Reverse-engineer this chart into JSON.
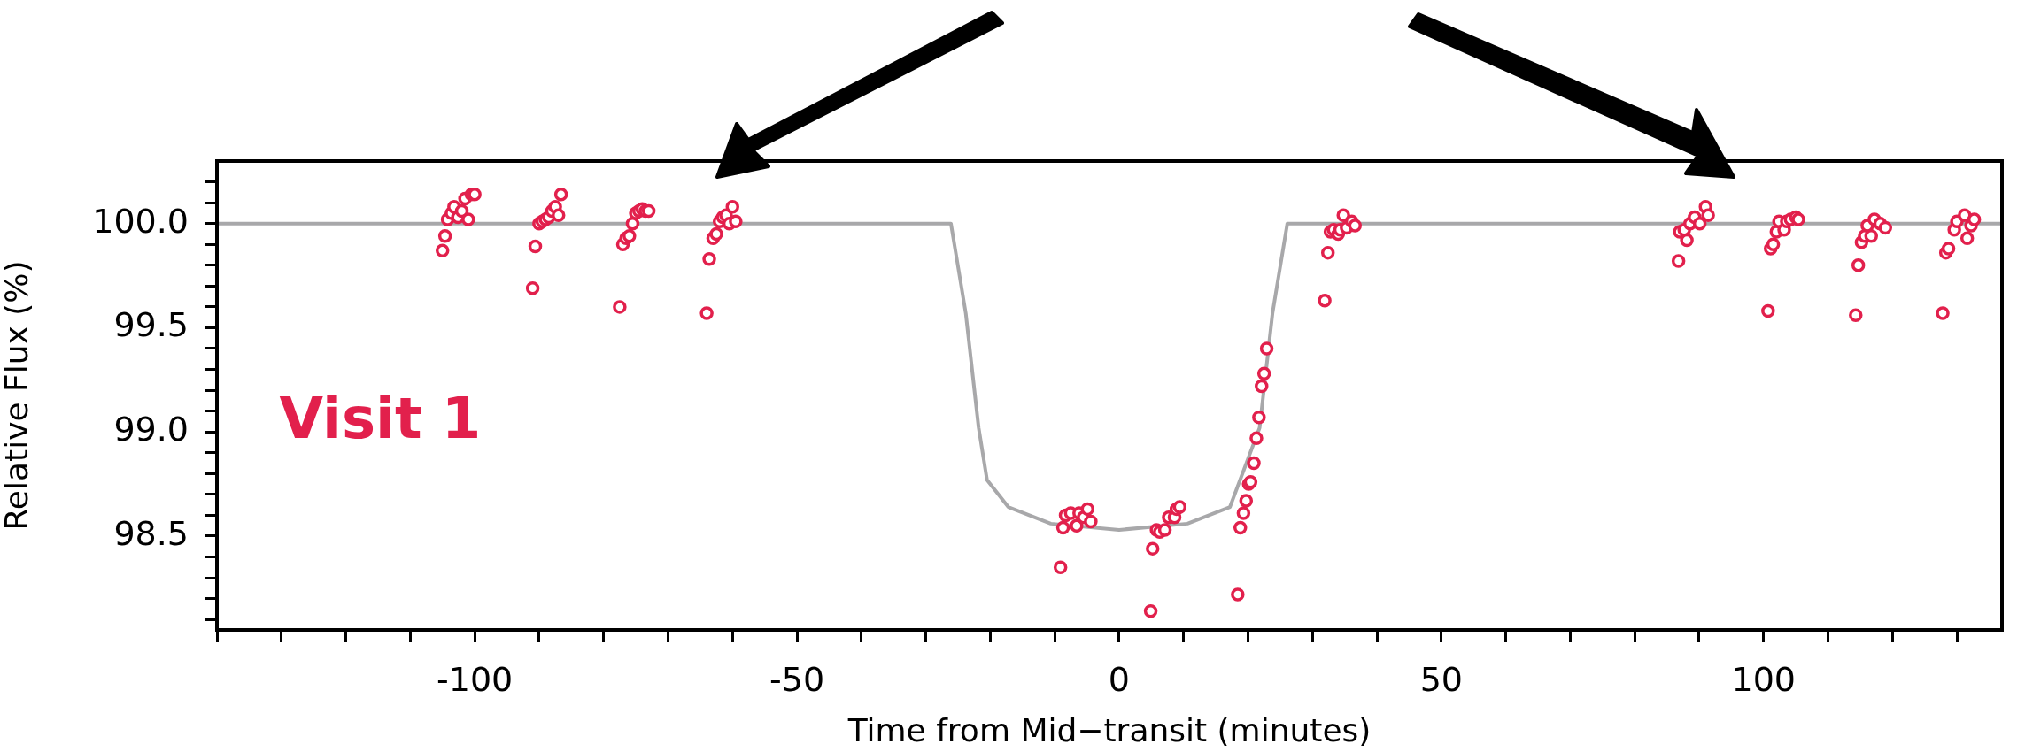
{
  "chart_data": {
    "type": "scatter",
    "xlabel": "Time from Mid−transit (minutes)",
    "ylabel": "Relative Flux (%)",
    "xlim": [
      -140,
      137
    ],
    "ylim": [
      98.05,
      100.3
    ],
    "xticks": [
      {
        "value": -140,
        "label": null
      },
      {
        "value": -130,
        "label": null
      },
      {
        "value": -120,
        "label": null
      },
      {
        "value": -110,
        "label": null
      },
      -100,
      {
        "value": -90,
        "label": null
      },
      {
        "value": -80,
        "label": null
      },
      {
        "value": -70,
        "label": null
      },
      {
        "value": -60,
        "label": null
      },
      -50,
      {
        "value": -40,
        "label": null
      },
      {
        "value": -30,
        "label": null
      },
      {
        "value": -20,
        "label": null
      },
      {
        "value": -10,
        "label": null
      },
      0,
      {
        "value": 10,
        "label": null
      },
      {
        "value": 20,
        "label": null
      },
      {
        "value": 30,
        "label": null
      },
      {
        "value": 40,
        "label": null
      },
      50,
      {
        "value": 60,
        "label": null
      },
      {
        "value": 70,
        "label": null
      },
      {
        "value": 80,
        "label": null
      },
      {
        "value": 90,
        "label": null
      },
      100,
      {
        "value": 110,
        "label": null
      },
      {
        "value": 120,
        "label": null
      },
      {
        "value": 130,
        "label": null
      }
    ],
    "yticks": [
      {
        "value": 98.1,
        "label": null
      },
      {
        "value": 98.2,
        "label": null
      },
      {
        "value": 98.3,
        "label": null
      },
      {
        "value": 98.4,
        "label": null
      },
      98.5,
      {
        "value": 98.6,
        "label": null
      },
      {
        "value": 98.7,
        "label": null
      },
      {
        "value": 98.8,
        "label": null
      },
      {
        "value": 98.9,
        "label": null
      },
      {
        "value": 99,
        "label": "99.0"
      },
      {
        "value": 99.1,
        "label": null
      },
      {
        "value": 99.2,
        "label": null
      },
      {
        "value": 99.3,
        "label": null
      },
      {
        "value": 99.4,
        "label": null
      },
      99.5,
      {
        "value": 99.6,
        "label": null
      },
      {
        "value": 99.7,
        "label": null
      },
      {
        "value": 99.8,
        "label": null
      },
      {
        "value": 99.9,
        "label": null
      },
      {
        "value": 100,
        "label": "100.0"
      },
      {
        "value": 100.1,
        "label": null
      },
      {
        "value": 100.2,
        "label": null
      }
    ],
    "grid": false,
    "legend": false,
    "series": [
      {
        "type": "line",
        "color": "#a8a8aa",
        "marker": "none",
        "line_style": "solid",
        "x": [
          -140,
          -26.1,
          -23.8,
          -21.8,
          -20.5,
          -17.2,
          -10.6,
          0,
          10.6,
          17.2,
          21.8,
          23.8,
          26.1,
          137
        ],
        "values": [
          100,
          100,
          99.57,
          99.02,
          98.77,
          98.64,
          98.56,
          98.53,
          98.56,
          98.64,
          99.02,
          99.57,
          100,
          100
        ]
      },
      {
        "type": "scatter",
        "name": "Visit 1",
        "color": "#e2204c",
        "marker": "circle",
        "x": [
          -105,
          -104.6,
          -104.2,
          -103.6,
          -103.2,
          -102.6,
          -102,
          -101.5,
          -101,
          -100.5,
          -100,
          -91,
          -90.6,
          -90,
          -89.5,
          -89,
          -88.5,
          -88,
          -87.5,
          -87,
          -86.6,
          -77.5,
          -77,
          -76.5,
          -76,
          -75.5,
          -75,
          -74.5,
          -74,
          -73.5,
          -73,
          -64,
          -63.6,
          -63,
          -62.5,
          -62,
          -61.5,
          -61,
          -60.5,
          -60,
          -59.5,
          -9.1,
          -8.7,
          -8.3,
          -7.5,
          -6.6,
          -6.2,
          -5.5,
          -4.9,
          -4.4,
          4.9,
          5.2,
          5.8,
          6.3,
          7.1,
          7.7,
          8.6,
          8.9,
          9.4,
          18.4,
          18.8,
          19.3,
          19.7,
          20.1,
          20.4,
          20.9,
          21.3,
          21.7,
          22.1,
          22.5,
          22.9,
          31.9,
          32.4,
          32.8,
          33.3,
          34,
          34.3,
          34.8,
          35.3,
          36.1,
          36.6,
          86.8,
          87,
          87.7,
          88.1,
          88.6,
          89.3,
          90.1,
          91,
          91.4,
          100.7,
          101.1,
          101.5,
          102,
          102.4,
          103.2,
          103.6,
          104.2,
          105,
          105.4,
          114.3,
          114.7,
          115.2,
          115.7,
          116.1,
          116.7,
          117.2,
          118.1,
          118.9,
          127.8,
          128.3,
          128.7,
          129.6,
          130,
          131.2,
          131.6,
          132.2,
          132.7
        ],
        "values": [
          99.87,
          99.94,
          100.02,
          100.05,
          100.08,
          100.03,
          100.06,
          100.12,
          100.02,
          100.14,
          100.14,
          99.69,
          99.89,
          100,
          100.01,
          100.02,
          100.03,
          100.06,
          100.08,
          100.04,
          100.14,
          99.6,
          99.9,
          99.93,
          99.94,
          100,
          100.05,
          100.06,
          100.07,
          100.06,
          100.06,
          99.57,
          99.83,
          99.93,
          99.95,
          100.01,
          100.03,
          100.04,
          100,
          100.08,
          100.01,
          98.35,
          98.54,
          98.6,
          98.61,
          98.55,
          98.61,
          98.59,
          98.63,
          98.57,
          98.14,
          98.44,
          98.53,
          98.52,
          98.53,
          98.59,
          98.59,
          98.63,
          98.64,
          98.22,
          98.54,
          98.61,
          98.67,
          98.75,
          98.76,
          98.85,
          98.97,
          99.07,
          99.22,
          99.28,
          99.4,
          99.63,
          99.86,
          99.96,
          99.97,
          99.95,
          99.97,
          100.04,
          99.98,
          100.01,
          99.99,
          99.82,
          99.96,
          99.97,
          99.92,
          100,
          100.03,
          100,
          100.08,
          100.04,
          99.58,
          99.88,
          99.9,
          99.96,
          100.01,
          99.97,
          100.01,
          100.02,
          100.03,
          100.02,
          99.56,
          99.8,
          99.91,
          99.94,
          99.99,
          99.94,
          100.02,
          100,
          99.98,
          99.57,
          99.86,
          99.88,
          99.97,
          100.01,
          100.04,
          99.93,
          99.99,
          100.02
        ]
      }
    ]
  }
}
